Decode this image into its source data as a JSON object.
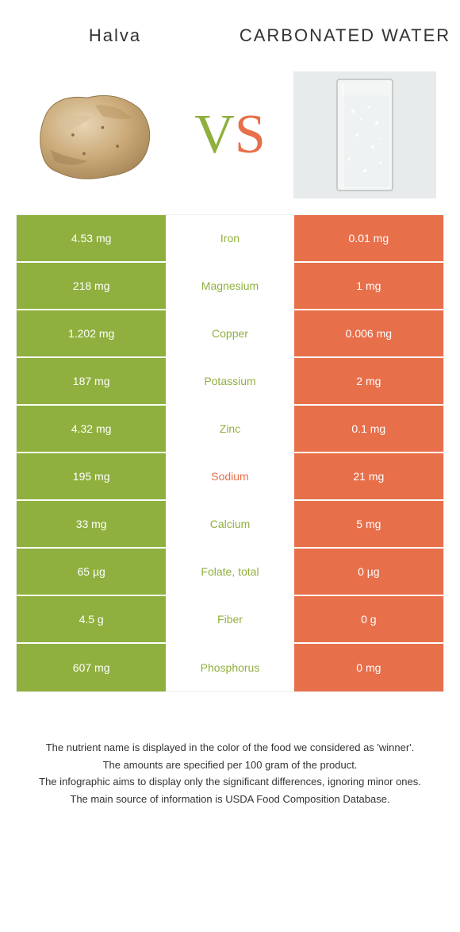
{
  "colors": {
    "left": "#8fb03e",
    "right": "#e76f4a",
    "mid_bg": "#ffffff"
  },
  "header": {
    "left": "Halva",
    "right": "CARBONATED WATER"
  },
  "vs": {
    "v": "V",
    "s": "S"
  },
  "rows": [
    {
      "left": "4.53 mg",
      "label": "Iron",
      "right": "0.01 mg",
      "winner": "left"
    },
    {
      "left": "218 mg",
      "label": "Magnesium",
      "right": "1 mg",
      "winner": "left"
    },
    {
      "left": "1.202 mg",
      "label": "Copper",
      "right": "0.006 mg",
      "winner": "left"
    },
    {
      "left": "187 mg",
      "label": "Potassium",
      "right": "2 mg",
      "winner": "left"
    },
    {
      "left": "4.32 mg",
      "label": "Zinc",
      "right": "0.1 mg",
      "winner": "left"
    },
    {
      "left": "195 mg",
      "label": "Sodium",
      "right": "21 mg",
      "winner": "right"
    },
    {
      "left": "33 mg",
      "label": "Calcium",
      "right": "5 mg",
      "winner": "left"
    },
    {
      "left": "65 µg",
      "label": "Folate, total",
      "right": "0 µg",
      "winner": "left"
    },
    {
      "left": "4.5 g",
      "label": "Fiber",
      "right": "0 g",
      "winner": "left"
    },
    {
      "left": "607 mg",
      "label": "Phosphorus",
      "right": "0 mg",
      "winner": "left"
    }
  ],
  "footer": {
    "l1": "The nutrient name is displayed in the color of the food we considered as 'winner'.",
    "l2": "The amounts are specified per 100 gram of the product.",
    "l3": "The infographic aims to display only the significant differences, ignoring minor ones.",
    "l4": "The main source of information is USDA Food Composition Database."
  }
}
